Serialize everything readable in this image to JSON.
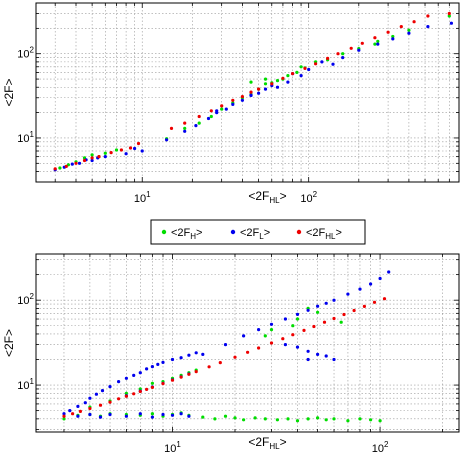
{
  "chart_data": [
    {
      "type": "scatter",
      "xscale": "log",
      "yscale": "log",
      "xlim": [
        2.3,
        800
      ],
      "ylim": [
        3.0,
        400
      ],
      "xlabel": {
        "base": "<2F",
        "sub": "HL",
        "tail": ">"
      },
      "ylabel": "<2F>",
      "grid": true,
      "x_ticks": [
        {
          "value": 10,
          "mant": "10",
          "exp": "1"
        },
        {
          "value": 100,
          "mant": "10",
          "exp": "2"
        }
      ],
      "y_ticks": [
        {
          "value": 10,
          "mant": "10",
          "exp": "1"
        },
        {
          "value": 100,
          "mant": "10",
          "exp": "2"
        }
      ],
      "series": [
        {
          "name": "H",
          "color": "#00dd00",
          "points": [
            [
              3.2,
              4.4
            ],
            [
              3.6,
              4.8
            ],
            [
              4.0,
              5.2
            ],
            [
              4.5,
              5.8
            ],
            [
              5.0,
              6.3
            ],
            [
              5.5,
              6.0
            ],
            [
              6.0,
              6.6
            ],
            [
              7.0,
              7.2
            ],
            [
              14,
              9.8
            ],
            [
              18,
              13
            ],
            [
              22,
              15
            ],
            [
              26,
              18
            ],
            [
              30,
              22
            ],
            [
              35,
              26
            ],
            [
              40,
              30
            ],
            [
              45,
              33
            ],
            [
              50,
              38
            ],
            [
              55,
              44
            ],
            [
              60,
              45
            ],
            [
              70,
              50
            ],
            [
              75,
              55
            ],
            [
              85,
              60
            ],
            [
              95,
              68
            ],
            [
              110,
              80
            ],
            [
              130,
              85
            ],
            [
              160,
              100
            ],
            [
              200,
              115
            ],
            [
              260,
              140
            ],
            [
              320,
              160
            ],
            [
              400,
              190
            ],
            [
              700,
              280
            ],
            [
              45,
              46
            ],
            [
              65,
              48
            ],
            [
              55,
              50
            ],
            [
              90,
              70
            ],
            [
              250,
              130
            ]
          ]
        },
        {
          "name": "L",
          "color": "#0000ee",
          "points": [
            [
              3.0,
              4.2
            ],
            [
              3.4,
              4.5
            ],
            [
              3.8,
              4.9
            ],
            [
              4.2,
              5.0
            ],
            [
              4.6,
              5.5
            ],
            [
              5.0,
              5.4
            ],
            [
              5.4,
              5.8
            ],
            [
              6.0,
              6.0
            ],
            [
              8.0,
              6.5
            ],
            [
              9.0,
              7.5
            ],
            [
              10.0,
              7.0
            ],
            [
              14,
              9.5
            ],
            [
              18,
              12
            ],
            [
              21,
              14
            ],
            [
              25,
              17
            ],
            [
              28,
              20
            ],
            [
              32,
              22
            ],
            [
              35,
              25
            ],
            [
              40,
              28
            ],
            [
              45,
              32
            ],
            [
              50,
              34
            ],
            [
              55,
              38
            ],
            [
              60,
              42
            ],
            [
              65,
              40
            ],
            [
              75,
              46
            ],
            [
              90,
              55
            ],
            [
              100,
              65
            ],
            [
              120,
              80
            ],
            [
              140,
              75
            ],
            [
              160,
              90
            ],
            [
              200,
              110
            ],
            [
              260,
              130
            ],
            [
              320,
              150
            ],
            [
              400,
              175
            ],
            [
              520,
              210
            ],
            [
              720,
              230
            ],
            [
              45,
              32
            ],
            [
              80,
              58
            ],
            [
              28,
              21
            ]
          ]
        },
        {
          "name": "HL",
          "color": "#ee0000",
          "points": [
            [
              3.0,
              4.3
            ],
            [
              3.5,
              4.6
            ],
            [
              4.0,
              5.0
            ],
            [
              4.5,
              5.4
            ],
            [
              5.0,
              5.8
            ],
            [
              5.5,
              6.0
            ],
            [
              6.5,
              6.7
            ],
            [
              7.5,
              7.2
            ],
            [
              8.5,
              7.6
            ],
            [
              9.5,
              8.6
            ],
            [
              15,
              13
            ],
            [
              18,
              15
            ],
            [
              22,
              18
            ],
            [
              26,
              21
            ],
            [
              30,
              24
            ],
            [
              35,
              28
            ],
            [
              40,
              31
            ],
            [
              45,
              35
            ],
            [
              50,
              38
            ],
            [
              60,
              44
            ],
            [
              70,
              51
            ],
            [
              80,
              58
            ],
            [
              95,
              67
            ],
            [
              110,
              76
            ],
            [
              130,
              88
            ],
            [
              150,
              100
            ],
            [
              180,
              116
            ],
            [
              210,
              133
            ],
            [
              250,
              155
            ],
            [
              300,
              180
            ],
            [
              360,
              210
            ],
            [
              430,
              240
            ],
            [
              520,
              280
            ],
            [
              700,
              300
            ]
          ]
        }
      ]
    },
    {
      "type": "scatter",
      "xscale": "log",
      "yscale": "log",
      "xlim": [
        2.2,
        240
      ],
      "ylim": [
        2.8,
        350
      ],
      "xlabel": {
        "base": "<2F",
        "sub": "HL",
        "tail": ">"
      },
      "ylabel": "<2F>",
      "grid": true,
      "x_ticks": [
        {
          "value": 10,
          "mant": "10",
          "exp": "1"
        },
        {
          "value": 100,
          "mant": "10",
          "exp": "2"
        }
      ],
      "y_ticks": [
        {
          "value": 10,
          "mant": "10",
          "exp": "1"
        },
        {
          "value": 100,
          "mant": "10",
          "exp": "2"
        }
      ],
      "series": [
        {
          "name": "H",
          "color": "#00dd00",
          "points": [
            [
              3.0,
              4.0
            ],
            [
              3.5,
              4.4
            ],
            [
              4.0,
              4.5
            ],
            [
              4.5,
              4.3
            ],
            [
              5.0,
              4.6
            ],
            [
              6.0,
              4.5
            ],
            [
              7.0,
              4.4
            ],
            [
              8.0,
              4.6
            ],
            [
              9.0,
              4.3
            ],
            [
              10,
              4.5
            ],
            [
              11,
              4.7
            ],
            [
              12,
              4.4
            ],
            [
              14,
              4.2
            ],
            [
              16,
              4.0
            ],
            [
              18,
              4.3
            ],
            [
              20,
              4.1
            ],
            [
              22,
              3.9
            ],
            [
              25,
              4.1
            ],
            [
              28,
              4.0
            ],
            [
              32,
              3.9
            ],
            [
              36,
              4.0
            ],
            [
              40,
              3.8
            ],
            [
              45,
              4.0
            ],
            [
              50,
              4.1
            ],
            [
              55,
              3.9
            ],
            [
              60,
              4.0
            ],
            [
              70,
              3.8
            ],
            [
              80,
              4.0
            ],
            [
              90,
              3.9
            ],
            [
              100,
              3.8
            ],
            [
              6.0,
              8.0
            ],
            [
              7.0,
              9.0
            ],
            [
              8.0,
              10.5
            ],
            [
              9.0,
              11.0
            ],
            [
              10,
              12.0
            ],
            [
              11,
              13.0
            ],
            [
              12,
              14.0
            ],
            [
              13,
              15.0
            ],
            [
              30,
              45
            ],
            [
              40,
              60
            ],
            [
              45,
              80
            ],
            [
              50,
              72
            ],
            [
              28,
              38
            ],
            [
              38,
              50
            ],
            [
              65,
              55
            ],
            [
              5.0,
              6.5
            ],
            [
              4.0,
              5.5
            ]
          ]
        },
        {
          "name": "L",
          "color": "#0000ee",
          "points": [
            [
              3.0,
              4.6
            ],
            [
              3.2,
              5.0
            ],
            [
              3.5,
              5.6
            ],
            [
              3.8,
              6.2
            ],
            [
              4.0,
              7.0
            ],
            [
              4.3,
              7.8
            ],
            [
              4.6,
              8.6
            ],
            [
              5.0,
              9.6
            ],
            [
              5.5,
              11
            ],
            [
              6.0,
              12
            ],
            [
              6.5,
              13
            ],
            [
              7.0,
              14
            ],
            [
              7.5,
              15.5
            ],
            [
              8.0,
              16.5
            ],
            [
              8.5,
              17.5
            ],
            [
              9.0,
              18.5
            ],
            [
              10,
              20
            ],
            [
              11,
              21
            ],
            [
              12,
              22.5
            ],
            [
              13,
              24
            ],
            [
              14,
              23
            ],
            [
              3.5,
              4.3
            ],
            [
              4.0,
              4.5
            ],
            [
              4.5,
              4.2
            ],
            [
              5.0,
              4.5
            ],
            [
              6.0,
              4.3
            ],
            [
              7.0,
              4.6
            ],
            [
              8.0,
              4.2
            ],
            [
              9.0,
              4.5
            ],
            [
              10,
              4.4
            ],
            [
              11,
              4.6
            ],
            [
              12,
              4.3
            ],
            [
              6.0,
              7.5
            ],
            [
              7.0,
              8.5
            ],
            [
              8.0,
              9.5
            ],
            [
              9.0,
              10.5
            ],
            [
              10,
              11.5
            ],
            [
              11,
              12.5
            ],
            [
              12,
              13.5
            ],
            [
              18,
              30
            ],
            [
              22,
              38
            ],
            [
              26,
              45
            ],
            [
              30,
              52
            ],
            [
              35,
              60
            ],
            [
              40,
              68
            ],
            [
              45,
              76
            ],
            [
              50,
              85
            ],
            [
              55,
              92
            ],
            [
              60,
              100
            ],
            [
              70,
              118
            ],
            [
              80,
              135
            ],
            [
              90,
              155
            ],
            [
              100,
              180
            ],
            [
              110,
              215
            ],
            [
              35,
              30
            ],
            [
              45,
              25
            ],
            [
              55,
              22
            ],
            [
              60,
              20
            ],
            [
              40,
              28
            ],
            [
              50,
              23
            ],
            [
              45,
              20
            ]
          ]
        },
        {
          "name": "HL",
          "color": "#ee0000",
          "points": [
            [
              3.0,
              4.3
            ],
            [
              3.3,
              4.6
            ],
            [
              3.6,
              4.9
            ],
            [
              4.0,
              5.3
            ],
            [
              4.5,
              5.8
            ],
            [
              5.0,
              6.3
            ],
            [
              5.5,
              6.9
            ],
            [
              6.0,
              7.4
            ],
            [
              6.5,
              7.9
            ],
            [
              7.0,
              8.4
            ],
            [
              7.5,
              8.9
            ],
            [
              8.0,
              9.4
            ],
            [
              9.0,
              10.4
            ],
            [
              10,
              11.4
            ],
            [
              11,
              12.4
            ],
            [
              12,
              13.4
            ],
            [
              13,
              14.4
            ],
            [
              15,
              16.4
            ],
            [
              17,
              18.4
            ],
            [
              20,
              21.3
            ],
            [
              23,
              24.3
            ],
            [
              26,
              27.3
            ],
            [
              30,
              31.3
            ],
            [
              34,
              35.2
            ],
            [
              38,
              39.2
            ],
            [
              43,
              44.1
            ],
            [
              48,
              49.0
            ],
            [
              54,
              55.0
            ],
            [
              60,
              60.9
            ],
            [
              67,
              67.8
            ],
            [
              75,
              75.6
            ],
            [
              84,
              84.5
            ],
            [
              94,
              94.4
            ],
            [
              105,
              104
            ]
          ]
        }
      ]
    }
  ],
  "legend": {
    "items": [
      {
        "base": "<2F",
        "sub": "H",
        "tail": ">",
        "color": "#00dd00"
      },
      {
        "base": "<2F",
        "sub": "L",
        "tail": ">",
        "color": "#0000ee"
      },
      {
        "base": "<2F",
        "sub": "HL",
        "tail": ">",
        "color": "#ee0000"
      }
    ]
  }
}
